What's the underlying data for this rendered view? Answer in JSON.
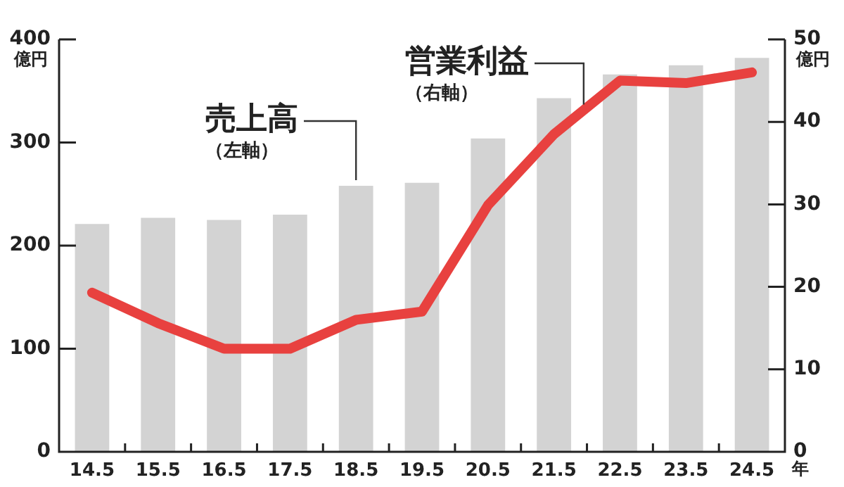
{
  "chart_data": {
    "type": "bar",
    "categories": [
      "14.5",
      "15.5",
      "16.5",
      "17.5",
      "18.5",
      "19.5",
      "20.5",
      "21.5",
      "22.5",
      "23.5",
      "24.5"
    ],
    "series": [
      {
        "name": "売上高",
        "color": "#d3d3d3",
        "values": [
          221,
          227,
          225,
          230,
          258,
          261,
          304,
          343,
          366,
          375,
          382
        ]
      },
      {
        "name": "営業利益",
        "type": "line",
        "axis": "y2",
        "color": "#e8413f",
        "values": [
          19.3,
          15.6,
          12.5,
          12.5,
          16.0,
          17.0,
          29.9,
          38.5,
          45.0,
          44.7,
          46.0
        ]
      }
    ],
    "annotations": [
      "（左軸）",
      "（右軸）"
    ],
    "xlabel": "年",
    "ylabel": "億円",
    "y2label": "億円",
    "ylim": [
      0,
      400
    ],
    "yticks": [
      0,
      100,
      200,
      300,
      400
    ],
    "y2lim": [
      0,
      50
    ],
    "y2ticks": [
      0,
      10,
      20,
      30,
      40,
      50
    ],
    "grid": false,
    "legend": false,
    "marker": "none",
    "line_style": "solid"
  }
}
